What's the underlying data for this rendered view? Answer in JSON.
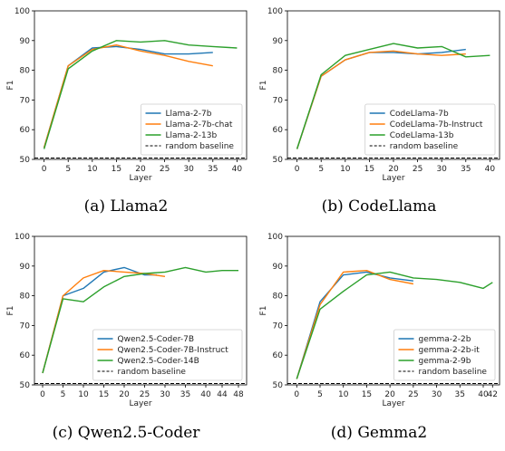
{
  "chart_data": [
    {
      "type": "line",
      "caption": "(a) Llama2",
      "xlabel": "Layer",
      "ylabel": "F1",
      "xticks": [
        0,
        5,
        10,
        15,
        20,
        25,
        30,
        35,
        40
      ],
      "yticks": [
        50,
        60,
        70,
        80,
        90,
        100
      ],
      "xlim": [
        -2,
        42
      ],
      "ylim": [
        50,
        100
      ],
      "grid": false,
      "legend": "lower-right",
      "series": [
        {
          "name": "Llama-2-7b",
          "color": "#1f77b4",
          "x": [
            0,
            5,
            10,
            15,
            20,
            25,
            30,
            35
          ],
          "y": [
            54,
            81.5,
            87.5,
            88,
            87,
            85.5,
            85.5,
            86
          ]
        },
        {
          "name": "Llama-2-7b-chat",
          "color": "#ff7f0e",
          "x": [
            0,
            5,
            10,
            15,
            20,
            25,
            30,
            35
          ],
          "y": [
            54,
            81.5,
            87,
            88.5,
            86.5,
            85,
            83,
            81.5
          ]
        },
        {
          "name": "Llama-2-13b",
          "color": "#2ca02c",
          "x": [
            0,
            5,
            10,
            15,
            20,
            25,
            30,
            35,
            40
          ],
          "y": [
            53.5,
            80.5,
            86.5,
            90,
            89.5,
            90,
            88.5,
            88,
            87.5
          ]
        }
      ],
      "baseline": {
        "name": "random baseline",
        "value": 50
      }
    },
    {
      "type": "line",
      "caption": "(b) CodeLlama",
      "xlabel": "Layer",
      "ylabel": "F1",
      "xticks": [
        0,
        5,
        10,
        15,
        20,
        25,
        30,
        35,
        40
      ],
      "yticks": [
        50,
        60,
        70,
        80,
        90,
        100
      ],
      "xlim": [
        -2,
        42
      ],
      "ylim": [
        50,
        100
      ],
      "grid": false,
      "legend": "lower-right",
      "series": [
        {
          "name": "CodeLlama-7b",
          "color": "#1f77b4",
          "x": [
            0,
            5,
            10,
            15,
            20,
            25,
            30,
            35
          ],
          "y": [
            53.5,
            78,
            83.5,
            86,
            86,
            85.5,
            86,
            87
          ]
        },
        {
          "name": "CodeLlama-7b-Instruct",
          "color": "#ff7f0e",
          "x": [
            0,
            5,
            10,
            15,
            20,
            25,
            30,
            35
          ],
          "y": [
            53.5,
            78,
            83.5,
            86,
            86.5,
            85.5,
            85,
            85.5
          ]
        },
        {
          "name": "CodeLlama-13b",
          "color": "#2ca02c",
          "x": [
            0,
            5,
            10,
            15,
            20,
            25,
            30,
            35,
            40
          ],
          "y": [
            53.5,
            78.5,
            85,
            87,
            89,
            87.5,
            88,
            84.5,
            85
          ]
        }
      ],
      "baseline": {
        "name": "random baseline",
        "value": 50
      }
    },
    {
      "type": "line",
      "caption": "(c) Qwen2.5-Coder",
      "xlabel": "Layer",
      "ylabel": "F1",
      "xticks": [
        0,
        5,
        10,
        15,
        20,
        25,
        30,
        35,
        40,
        44,
        48
      ],
      "yticks": [
        50,
        60,
        70,
        80,
        90,
        100
      ],
      "xlim": [
        -2,
        50
      ],
      "ylim": [
        50,
        100
      ],
      "grid": false,
      "legend": "lower-right",
      "series": [
        {
          "name": "Qwen2.5-Coder-7B",
          "color": "#1f77b4",
          "x": [
            0,
            5,
            10,
            15,
            20,
            25,
            28
          ],
          "y": [
            54,
            80,
            82.5,
            88,
            89.5,
            87,
            87
          ]
        },
        {
          "name": "Qwen2.5-Coder-7B-Instruct",
          "color": "#ff7f0e",
          "x": [
            0,
            5,
            10,
            15,
            20,
            25,
            30
          ],
          "y": [
            54,
            80,
            86,
            88.5,
            88,
            87.5,
            86.5
          ]
        },
        {
          "name": "Qwen2.5-Coder-14B",
          "color": "#2ca02c",
          "x": [
            0,
            5,
            10,
            15,
            20,
            25,
            30,
            35,
            40,
            44,
            48
          ],
          "y": [
            54,
            79,
            78,
            83,
            86.5,
            87.5,
            88,
            89.5,
            88,
            88.5,
            88.5
          ]
        }
      ],
      "baseline": {
        "name": "random baseline",
        "value": 50
      }
    },
    {
      "type": "line",
      "caption": "(d) Gemma2",
      "xlabel": "Layer",
      "ylabel": "F1",
      "xticks": [
        0,
        5,
        10,
        15,
        20,
        25,
        30,
        35,
        40,
        42
      ],
      "yticks": [
        50,
        60,
        70,
        80,
        90,
        100
      ],
      "xlim": [
        -2,
        43.5
      ],
      "ylim": [
        50,
        100
      ],
      "grid": false,
      "legend": "lower-right",
      "series": [
        {
          "name": "gemma-2-2b",
          "color": "#1f77b4",
          "x": [
            0,
            5,
            10,
            15,
            20,
            25
          ],
          "y": [
            52,
            78,
            87,
            88,
            86,
            85
          ]
        },
        {
          "name": "gemma-2-2b-it",
          "color": "#ff7f0e",
          "x": [
            0,
            5,
            10,
            15,
            20,
            25
          ],
          "y": [
            52,
            77,
            88,
            88.5,
            85.5,
            84
          ]
        },
        {
          "name": "gemma-2-9b",
          "color": "#2ca02c",
          "x": [
            0,
            5,
            10,
            15,
            20,
            25,
            30,
            35,
            40,
            42
          ],
          "y": [
            52,
            75.5,
            81.5,
            87,
            88,
            86,
            85.5,
            84.5,
            82.5,
            84.5
          ]
        }
      ],
      "baseline": {
        "name": "random baseline",
        "value": 50
      }
    }
  ]
}
